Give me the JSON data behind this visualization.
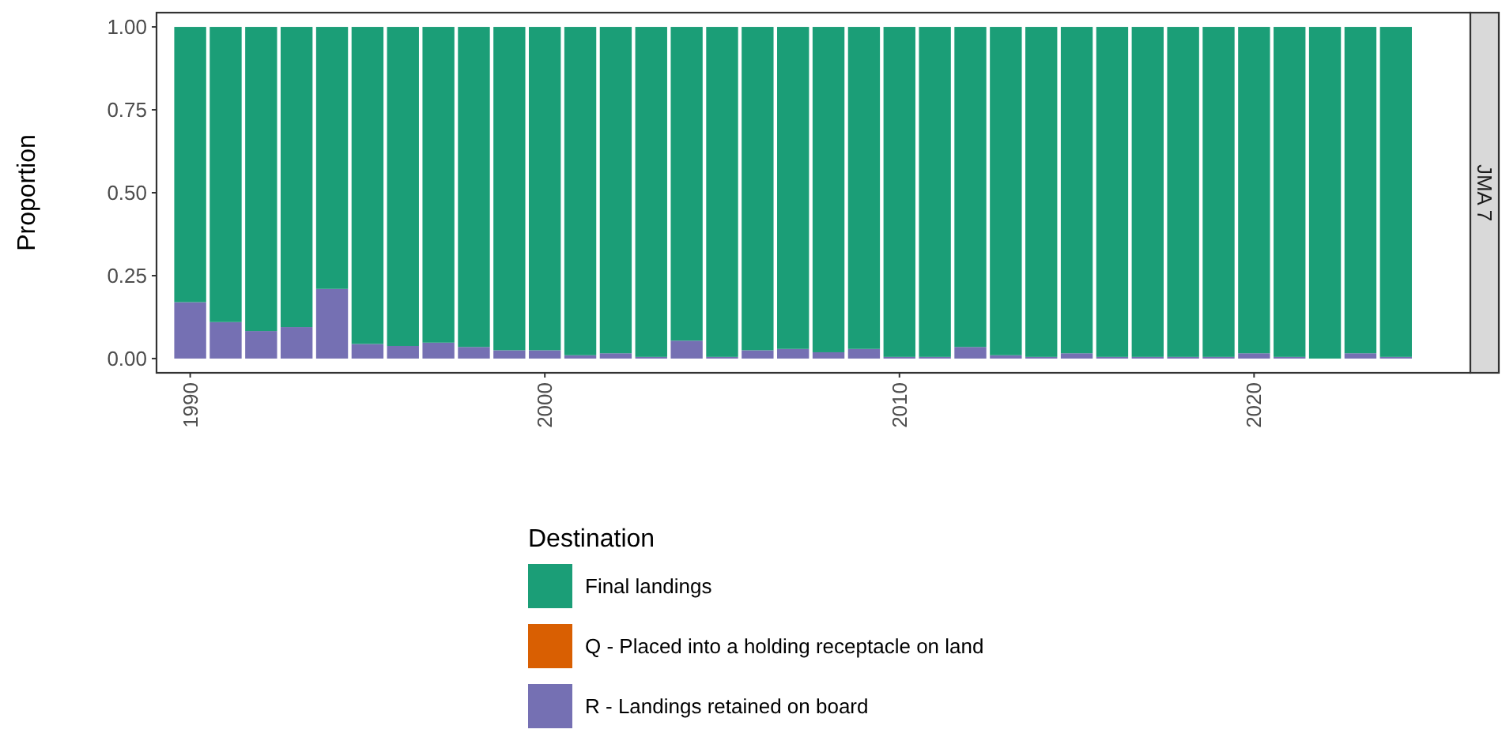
{
  "chart_data": {
    "type": "bar",
    "stacked": true,
    "ylabel": "Proportion",
    "legend_title": "Destination",
    "legend": "bottom",
    "grid": false,
    "annotations": [
      "JMA 7"
    ],
    "x": [
      1990,
      1991,
      1992,
      1993,
      1994,
      1995,
      1996,
      1997,
      1998,
      1999,
      2000,
      2001,
      2002,
      2003,
      2004,
      2005,
      2006,
      2007,
      2008,
      2009,
      2010,
      2011,
      2012,
      2013,
      2014,
      2015,
      2016,
      2017,
      2018,
      2019,
      2020,
      2021,
      2022,
      2023,
      2024
    ],
    "xlim": [
      1989.05,
      2026.1
    ],
    "xticks": [
      1990,
      2000,
      2010,
      2020
    ],
    "ylim": [
      -0.043,
      1.043
    ],
    "yticks": [
      {
        "value": 0,
        "label": "0.00"
      },
      {
        "value": 0.25,
        "label": "0.25"
      },
      {
        "value": 0.5,
        "label": "0.50"
      },
      {
        "value": 0.75,
        "label": "0.75"
      },
      {
        "value": 1,
        "label": "1.00"
      }
    ],
    "series": [
      {
        "name": "R - Landings retained on board",
        "color": "#7570b3",
        "values": [
          0.17,
          0.11,
          0.083,
          0.095,
          0.21,
          0.044,
          0.038,
          0.048,
          0.035,
          0.025,
          0.025,
          0.01,
          0.016,
          0.005,
          0.054,
          0.005,
          0.025,
          0.029,
          0.019,
          0.029,
          0.005,
          0.005,
          0.035,
          0.01,
          0.005,
          0.016,
          0.005,
          0.005,
          0.005,
          0.005,
          0.016,
          0.005,
          0,
          0.016,
          0.005
        ]
      },
      {
        "name": "Q - Placed into a holding receptacle on land",
        "color": "#d95f02",
        "values": [
          0,
          0,
          0,
          0,
          0,
          0,
          0,
          0,
          0,
          0,
          0,
          0,
          0,
          0,
          0,
          0,
          0,
          0,
          0,
          0,
          0,
          0,
          0,
          0,
          0,
          0,
          0,
          0,
          0,
          0,
          0,
          0,
          0,
          0,
          0
        ]
      },
      {
        "name": "Final landings",
        "color": "#1b9e77",
        "values": [
          0.83,
          0.89,
          0.917,
          0.905,
          0.79,
          0.956,
          0.962,
          0.952,
          0.965,
          0.975,
          0.975,
          0.99,
          0.984,
          0.995,
          0.946,
          0.995,
          0.975,
          0.971,
          0.981,
          0.971,
          0.995,
          0.995,
          0.965,
          0.99,
          0.995,
          0.984,
          0.995,
          0.995,
          0.995,
          0.995,
          0.984,
          0.995,
          1,
          0.984,
          0.995
        ]
      }
    ]
  }
}
